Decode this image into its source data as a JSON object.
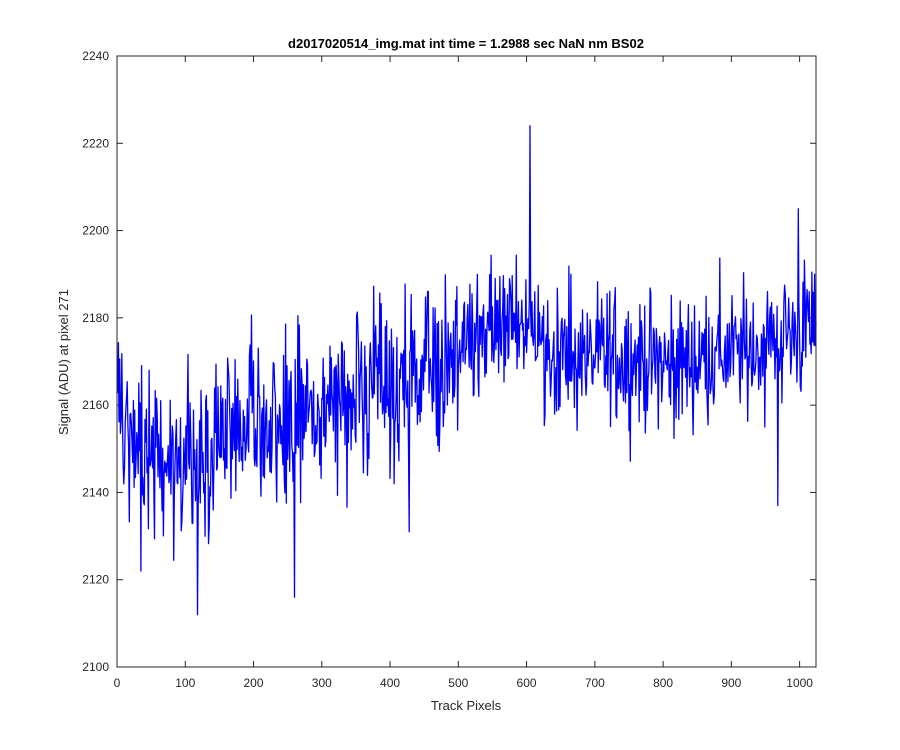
{
  "chart_data": {
    "type": "line",
    "title": "d2017020514_img.mat int time = 1.2988 sec  NaN nm BS02",
    "xlabel": "Track Pixels",
    "ylabel": "Signal (ADU) at pixel 271",
    "xlim": [
      0,
      1024
    ],
    "ylim": [
      2100,
      2240
    ],
    "xticks": [
      0,
      100,
      200,
      300,
      400,
      500,
      600,
      700,
      800,
      900,
      1000
    ],
    "yticks": [
      2100,
      2120,
      2140,
      2160,
      2180,
      2200,
      2220,
      2240
    ],
    "grid": false,
    "legend": "none",
    "line_color": "#0000ff",
    "series": [
      {
        "x": [
          1,
          40,
          80,
          120,
          160,
          200,
          240,
          280,
          320,
          360,
          400,
          440,
          480,
          520,
          560,
          600,
          640,
          680,
          720,
          760,
          800,
          840,
          880,
          920,
          960,
          1000,
          1024
        ],
        "values": [
          2160,
          2150,
          2148,
          2150,
          2152,
          2157,
          2158,
          2157,
          2161,
          2162,
          2163,
          2166,
          2170,
          2176,
          2177,
          2180,
          2172,
          2170,
          2171,
          2171,
          2169,
          2170,
          2172,
          2172,
          2175,
          2177,
          2178
        ]
      }
    ],
    "extremes": [
      {
        "x": 35,
        "y": 2122
      },
      {
        "x": 118,
        "y": 2112
      },
      {
        "x": 260,
        "y": 2116
      },
      {
        "x": 428,
        "y": 2131
      },
      {
        "x": 605,
        "y": 2224
      },
      {
        "x": 968,
        "y": 2137
      },
      {
        "x": 998,
        "y": 2205
      }
    ]
  }
}
